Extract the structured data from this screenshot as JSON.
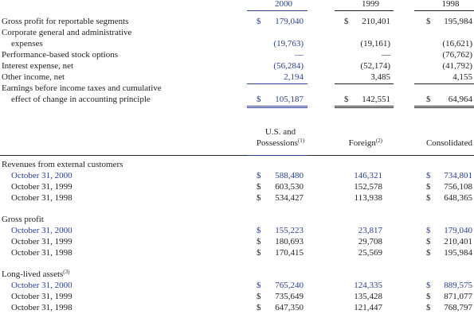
{
  "table1": {
    "headers": [
      "2000",
      "1999",
      "1998"
    ],
    "rows": [
      {
        "label": [
          "Gross profit for reportable segments"
        ],
        "cells": [
          {
            "currency": "$",
            "amount": "179,040"
          },
          {
            "currency": "$",
            "amount": "210,401"
          },
          {
            "currency": "$",
            "amount": "195,984"
          }
        ]
      },
      {
        "label": [
          "Corporate general and administrative",
          "expenses"
        ],
        "cells": [
          {
            "amount": "(19,763)"
          },
          {
            "amount": "(19,161)"
          },
          {
            "amount": "(16,621)"
          }
        ]
      },
      {
        "label": [
          "Performance-based stock options"
        ],
        "cells": [
          {
            "amount": "—"
          },
          {
            "amount": "—"
          },
          {
            "amount": "(76,762)"
          }
        ]
      },
      {
        "label": [
          "Interest expense, net"
        ],
        "cells": [
          {
            "amount": "(56,284)"
          },
          {
            "amount": "(52,174)"
          },
          {
            "amount": "(41,792)"
          }
        ]
      },
      {
        "label": [
          "Other income, net"
        ],
        "cells": [
          {
            "amount": "2,194"
          },
          {
            "amount": "3,485"
          },
          {
            "amount": "4,155"
          }
        ]
      },
      {
        "label": [
          "Earnings before income taxes and cumulative",
          "effect of change in accounting principle"
        ],
        "cells": [
          {
            "currency": "$",
            "amount": "105,187"
          },
          {
            "currency": "$",
            "amount": "142,551"
          },
          {
            "currency": "$",
            "amount": "64,964"
          }
        ]
      }
    ]
  },
  "table2": {
    "headers": [
      {
        "lines": [
          "U.S. and",
          "Possessions"
        ],
        "note": "(1)"
      },
      {
        "lines": [
          "Foreign"
        ],
        "note": "(2)"
      },
      {
        "lines": [
          "Consolidated"
        ]
      }
    ],
    "sections": [
      {
        "title": "Revenues from external customers",
        "rows": [
          {
            "label": "October 31, 2000",
            "cells": [
              {
                "currency": "$",
                "amount": "588,480"
              },
              {
                "amount": "146,321"
              },
              {
                "currency": "$",
                "amount": "734,801"
              }
            ]
          },
          {
            "label": "October 31, 1999",
            "cells": [
              {
                "currency": "$",
                "amount": "603,530"
              },
              {
                "amount": "152,578"
              },
              {
                "currency": "$",
                "amount": "756,108"
              }
            ]
          },
          {
            "label": "October 31, 1998",
            "cells": [
              {
                "currency": "$",
                "amount": "534,427"
              },
              {
                "amount": "113,938"
              },
              {
                "currency": "$",
                "amount": "648,365"
              }
            ]
          }
        ]
      },
      {
        "title": "Gross profit",
        "rows": [
          {
            "label": "October 31, 2000",
            "cells": [
              {
                "currency": "$",
                "amount": "155,223"
              },
              {
                "amount": "23,817"
              },
              {
                "currency": "$",
                "amount": "179,040"
              }
            ]
          },
          {
            "label": "October 31, 1999",
            "cells": [
              {
                "currency": "$",
                "amount": "180,693"
              },
              {
                "amount": "29,708"
              },
              {
                "currency": "$",
                "amount": "210,401"
              }
            ]
          },
          {
            "label": "October 31, 1998",
            "cells": [
              {
                "currency": "$",
                "amount": "170,415"
              },
              {
                "amount": "25,569"
              },
              {
                "currency": "$",
                "amount": "195,984"
              }
            ]
          }
        ]
      },
      {
        "title": "Long-lived assets",
        "note": "(3)",
        "rows": [
          {
            "label": "October 31, 2000",
            "cells": [
              {
                "currency": "$",
                "amount": "765,240"
              },
              {
                "amount": "124,335"
              },
              {
                "currency": "$",
                "amount": "889,575"
              }
            ]
          },
          {
            "label": "October 31, 1999",
            "cells": [
              {
                "currency": "$",
                "amount": "735,649"
              },
              {
                "amount": "135,428"
              },
              {
                "currency": "$",
                "amount": "871,077"
              }
            ]
          },
          {
            "label": "October 31, 1998",
            "cells": [
              {
                "currency": "$",
                "amount": "647,350"
              },
              {
                "amount": "121,447"
              },
              {
                "currency": "$",
                "amount": "768,797"
              }
            ]
          }
        ]
      }
    ]
  }
}
